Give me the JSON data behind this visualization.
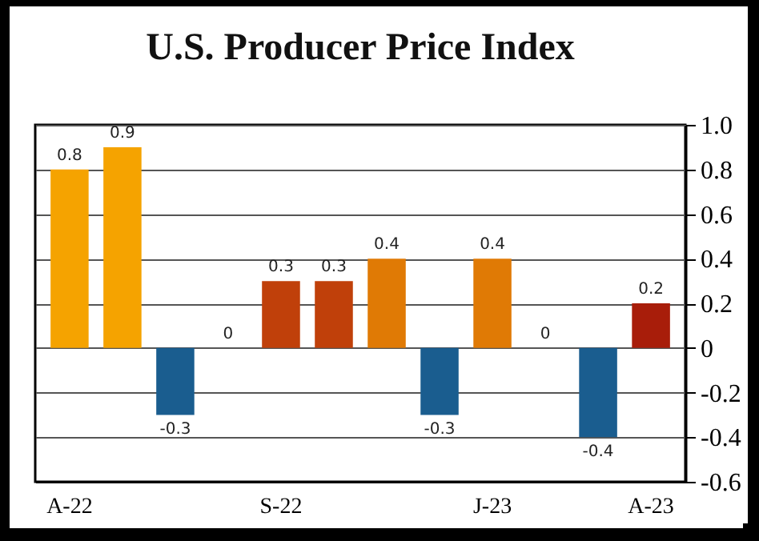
{
  "chart_data": {
    "type": "bar",
    "title": "U.S. Producer Price Index",
    "categories": [
      "A-22",
      null,
      null,
      null,
      "S-22",
      null,
      null,
      null,
      "J-23",
      null,
      null,
      "A-23"
    ],
    "values": [
      0.8,
      0.9,
      -0.3,
      0,
      0.3,
      0.3,
      0.4,
      -0.3,
      0.4,
      0,
      -0.4,
      0.2
    ],
    "colors": [
      "#f5a300",
      "#f5a300",
      "#1a5d8f",
      "#f5a300",
      "#c0400a",
      "#c0400a",
      "#e07a05",
      "#1a5d8f",
      "#e07a05",
      "#f5a300",
      "#1a5d8f",
      "#a81d0a"
    ],
    "ylim": [
      -0.6,
      1.0
    ],
    "yticks": [
      {
        "value": -0.6,
        "label": "-0.6"
      },
      {
        "value": -0.4,
        "label": "-0.4"
      },
      {
        "value": -0.2,
        "label": "-0.2"
      },
      0,
      {
        "value": 0.2,
        "label": "0.2"
      },
      {
        "value": 0.4,
        "label": "0.4"
      },
      {
        "value": 0.6,
        "label": "0.6"
      },
      {
        "value": 0.8,
        "label": "0.8"
      },
      {
        "value": 1,
        "label": "1.0"
      }
    ],
    "grid": "y",
    "data_labels": true
  }
}
